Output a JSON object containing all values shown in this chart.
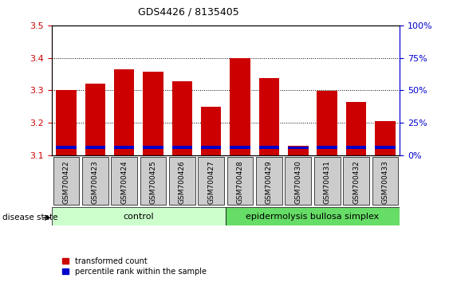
{
  "title": "GDS4426 / 8135405",
  "samples": [
    "GSM700422",
    "GSM700423",
    "GSM700424",
    "GSM700425",
    "GSM700426",
    "GSM700427",
    "GSM700428",
    "GSM700429",
    "GSM700430",
    "GSM700431",
    "GSM700432",
    "GSM700433"
  ],
  "red_values": [
    3.3,
    3.32,
    3.365,
    3.358,
    3.328,
    3.248,
    3.398,
    3.338,
    3.128,
    3.298,
    3.265,
    3.205
  ],
  "blue_bottom": [
    3.118,
    3.118,
    3.118,
    3.118,
    3.118,
    3.118,
    3.118,
    3.118,
    3.118,
    3.118,
    3.118,
    3.118
  ],
  "blue_heights": [
    0.01,
    0.01,
    0.01,
    0.01,
    0.01,
    0.01,
    0.01,
    0.01,
    0.008,
    0.01,
    0.01,
    0.01
  ],
  "ymin": 3.1,
  "ymax": 3.5,
  "yticks_left": [
    3.1,
    3.2,
    3.3,
    3.4,
    3.5
  ],
  "yticks_right": [
    0,
    25,
    50,
    75,
    100
  ],
  "bar_width": 0.7,
  "red_color": "#cc0000",
  "blue_color": "#0000cc",
  "control_samples": 6,
  "control_label": "control",
  "disease_label": "epidermolysis bullosa simplex",
  "disease_state_label": "disease state",
  "legend_red": "transformed count",
  "legend_blue": "percentile rank within the sample",
  "control_bg": "#ccffcc",
  "disease_bg": "#66dd66",
  "xlabel_bg": "#cccccc",
  "left_axis_color": "#cc0000",
  "right_axis_color": "#0000cc"
}
